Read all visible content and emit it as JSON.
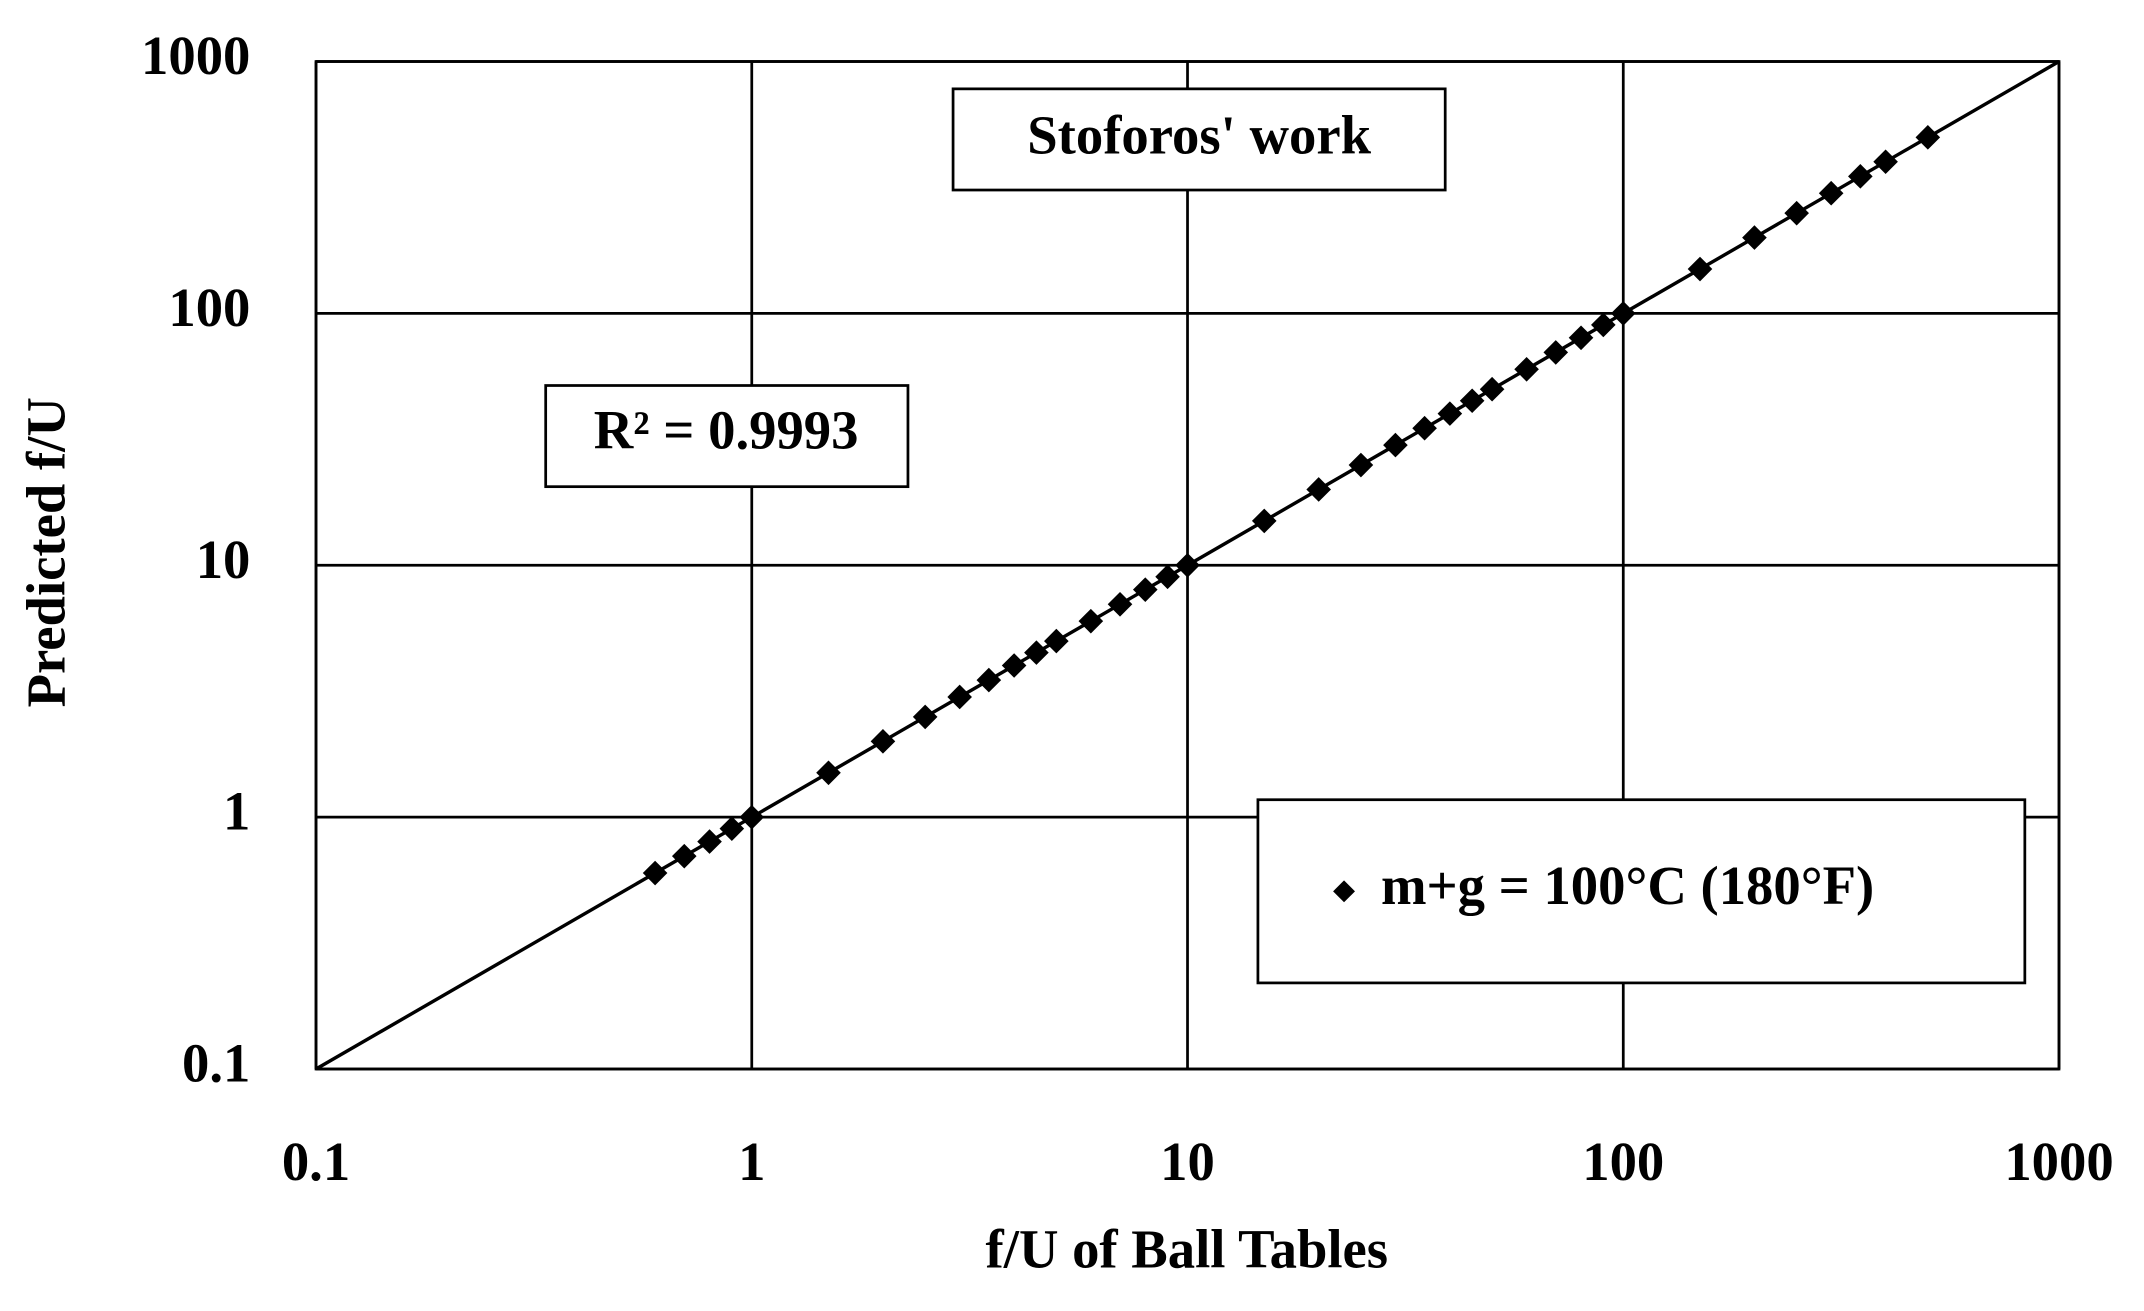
{
  "chart_data": {
    "type": "scatter",
    "xlabel": "f/U of Ball Tables",
    "ylabel": "Predicted f/U",
    "annotations": [
      "Stoforos' work",
      "R² = 0.9993"
    ],
    "xscale": "log",
    "yscale": "log",
    "xlim": [
      0.1,
      1000
    ],
    "ylim": [
      0.1,
      1000
    ],
    "xticks": [
      0.1,
      1,
      10,
      100,
      1000
    ],
    "yticks": [
      0.1,
      1,
      10,
      100,
      1000
    ],
    "grid": true,
    "legend": "lower right",
    "series": [
      {
        "name": "m+g = 100°C (180°F)",
        "color": "#000000",
        "x": [
          0.6,
          0.7,
          0.8,
          0.9,
          1,
          1.5,
          2,
          2.5,
          3,
          3.5,
          4,
          4.5,
          5,
          6,
          7,
          8,
          9,
          10,
          15,
          20,
          25,
          30,
          35,
          40,
          45,
          50,
          60,
          70,
          80,
          90,
          100,
          150,
          200,
          250,
          300,
          350,
          400,
          500
        ],
        "values": [
          0.6,
          0.7,
          0.8,
          0.9,
          1,
          1.5,
          2,
          2.5,
          3,
          3.5,
          4,
          4.5,
          5,
          6,
          7,
          8,
          9,
          10,
          15,
          20,
          25,
          30,
          35,
          40,
          45,
          50,
          60,
          70,
          80,
          90,
          100,
          150,
          200,
          250,
          300,
          350,
          400,
          500
        ]
      }
    ],
    "fit_line": {
      "color": "#000000",
      "x": [
        0.1,
        1000
      ],
      "values": [
        0.1,
        1000
      ]
    }
  }
}
